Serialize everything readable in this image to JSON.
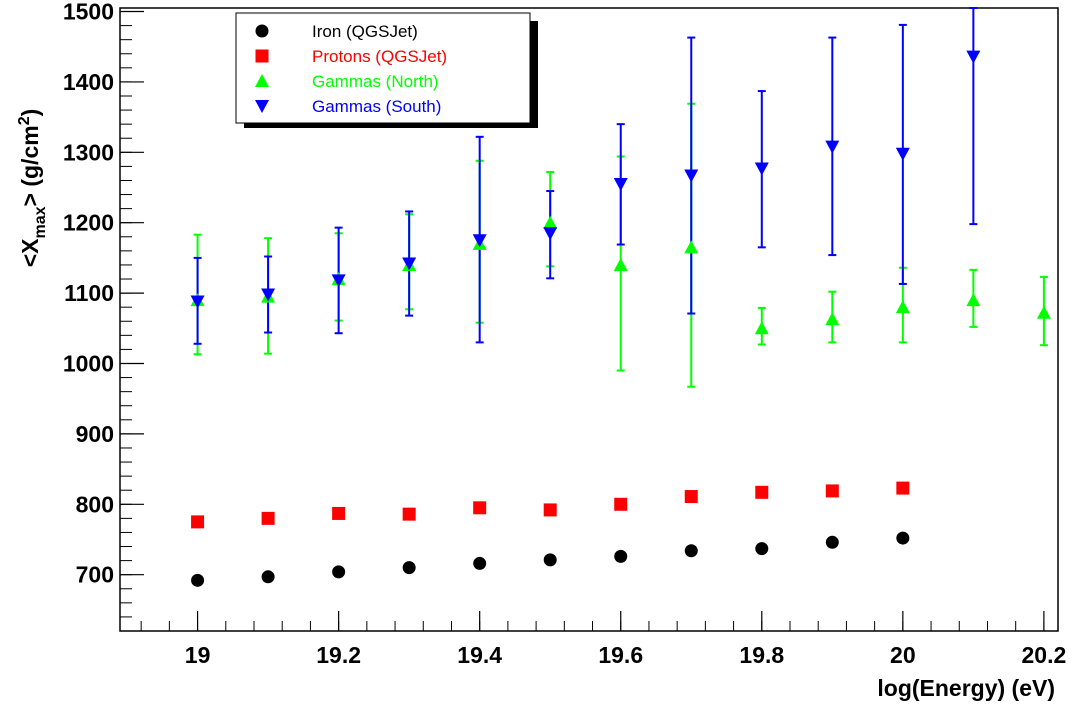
{
  "chart_data": {
    "type": "scatter",
    "xlabel": "log(Energy) (eV)",
    "ylabel": {
      "prefix": "<X",
      "sub": "max",
      "middle": "> (g/cm",
      "sup": "2",
      "suffix": ")"
    },
    "xlim": [
      18.89,
      20.22
    ],
    "ylim": [
      620,
      1505
    ],
    "x_ticks": [
      {
        "value": 19,
        "label": "19"
      },
      {
        "value": 19.2,
        "label": "19.2"
      },
      {
        "value": 19.4,
        "label": "19.4"
      },
      {
        "value": 19.6,
        "label": "19.6"
      },
      {
        "value": 19.8,
        "label": "19.8"
      },
      {
        "value": 20,
        "label": "20"
      },
      {
        "value": 20.2,
        "label": "20.2"
      }
    ],
    "y_ticks": [
      {
        "value": 700,
        "label": "700"
      },
      {
        "value": 800,
        "label": "800"
      },
      {
        "value": 900,
        "label": "900"
      },
      {
        "value": 1000,
        "label": "1000"
      },
      {
        "value": 1100,
        "label": "1100"
      },
      {
        "value": 1200,
        "label": "1200"
      },
      {
        "value": 1300,
        "label": "1300"
      },
      {
        "value": 1400,
        "label": "1400"
      },
      {
        "value": 1500,
        "label": "1500"
      }
    ],
    "x_minor_step": 0.04,
    "y_minor_step": 20,
    "legend_position": "top-left",
    "series": [
      {
        "name": "Iron (QGSJet)",
        "marker": "circle",
        "color": "#000000",
        "x": [
          19.0,
          19.1,
          19.2,
          19.3,
          19.4,
          19.5,
          19.6,
          19.7,
          19.8,
          19.9,
          20.0
        ],
        "y": [
          692,
          697,
          704,
          710,
          716,
          721,
          726,
          734,
          737,
          746,
          752
        ]
      },
      {
        "name": "Protons (QGSJet)",
        "marker": "square",
        "color": "#ff0000",
        "x": [
          19.0,
          19.1,
          19.2,
          19.3,
          19.4,
          19.5,
          19.6,
          19.7,
          19.8,
          19.9,
          20.0
        ],
        "y": [
          775,
          780,
          787,
          786,
          795,
          792,
          800,
          811,
          817,
          819,
          823
        ]
      },
      {
        "name": "Gammas (North)",
        "marker": "triangle-up",
        "color": "#00ff00",
        "x": [
          19.0,
          19.1,
          19.2,
          19.3,
          19.4,
          19.5,
          19.6,
          19.7,
          19.8,
          19.9,
          20.0,
          20.1,
          20.2
        ],
        "y": [
          1090,
          1095,
          1120,
          1140,
          1170,
          1200,
          1140,
          1165,
          1050,
          1063,
          1080,
          1090,
          1072
        ],
        "y_low": [
          1013,
          1014,
          1061,
          1077,
          1058,
          1138,
          990,
          967,
          1027,
          1030,
          1030,
          1052,
          1026
        ],
        "y_high": [
          1183,
          1178,
          1185,
          1212,
          1288,
          1272,
          1294,
          1369,
          1079,
          1102,
          1136,
          1133,
          1123
        ]
      },
      {
        "name": "Gammas (South)",
        "marker": "triangle-down",
        "color": "#0000ff",
        "x": [
          19.0,
          19.1,
          19.2,
          19.3,
          19.4,
          19.5,
          19.6,
          19.7,
          19.8,
          19.9,
          20.0,
          20.1
        ],
        "y": [
          1088,
          1098,
          1118,
          1142,
          1175,
          1185,
          1255,
          1267,
          1277,
          1308,
          1298,
          1436
        ],
        "y_low": [
          1028,
          1044,
          1043,
          1068,
          1030,
          1121,
          1169,
          1071,
          1165,
          1154,
          1113,
          1198
        ],
        "y_high": [
          1150,
          1152,
          1193,
          1216,
          1322,
          1245,
          1340,
          1463,
          1387,
          1463,
          1481,
          1505
        ]
      }
    ]
  }
}
